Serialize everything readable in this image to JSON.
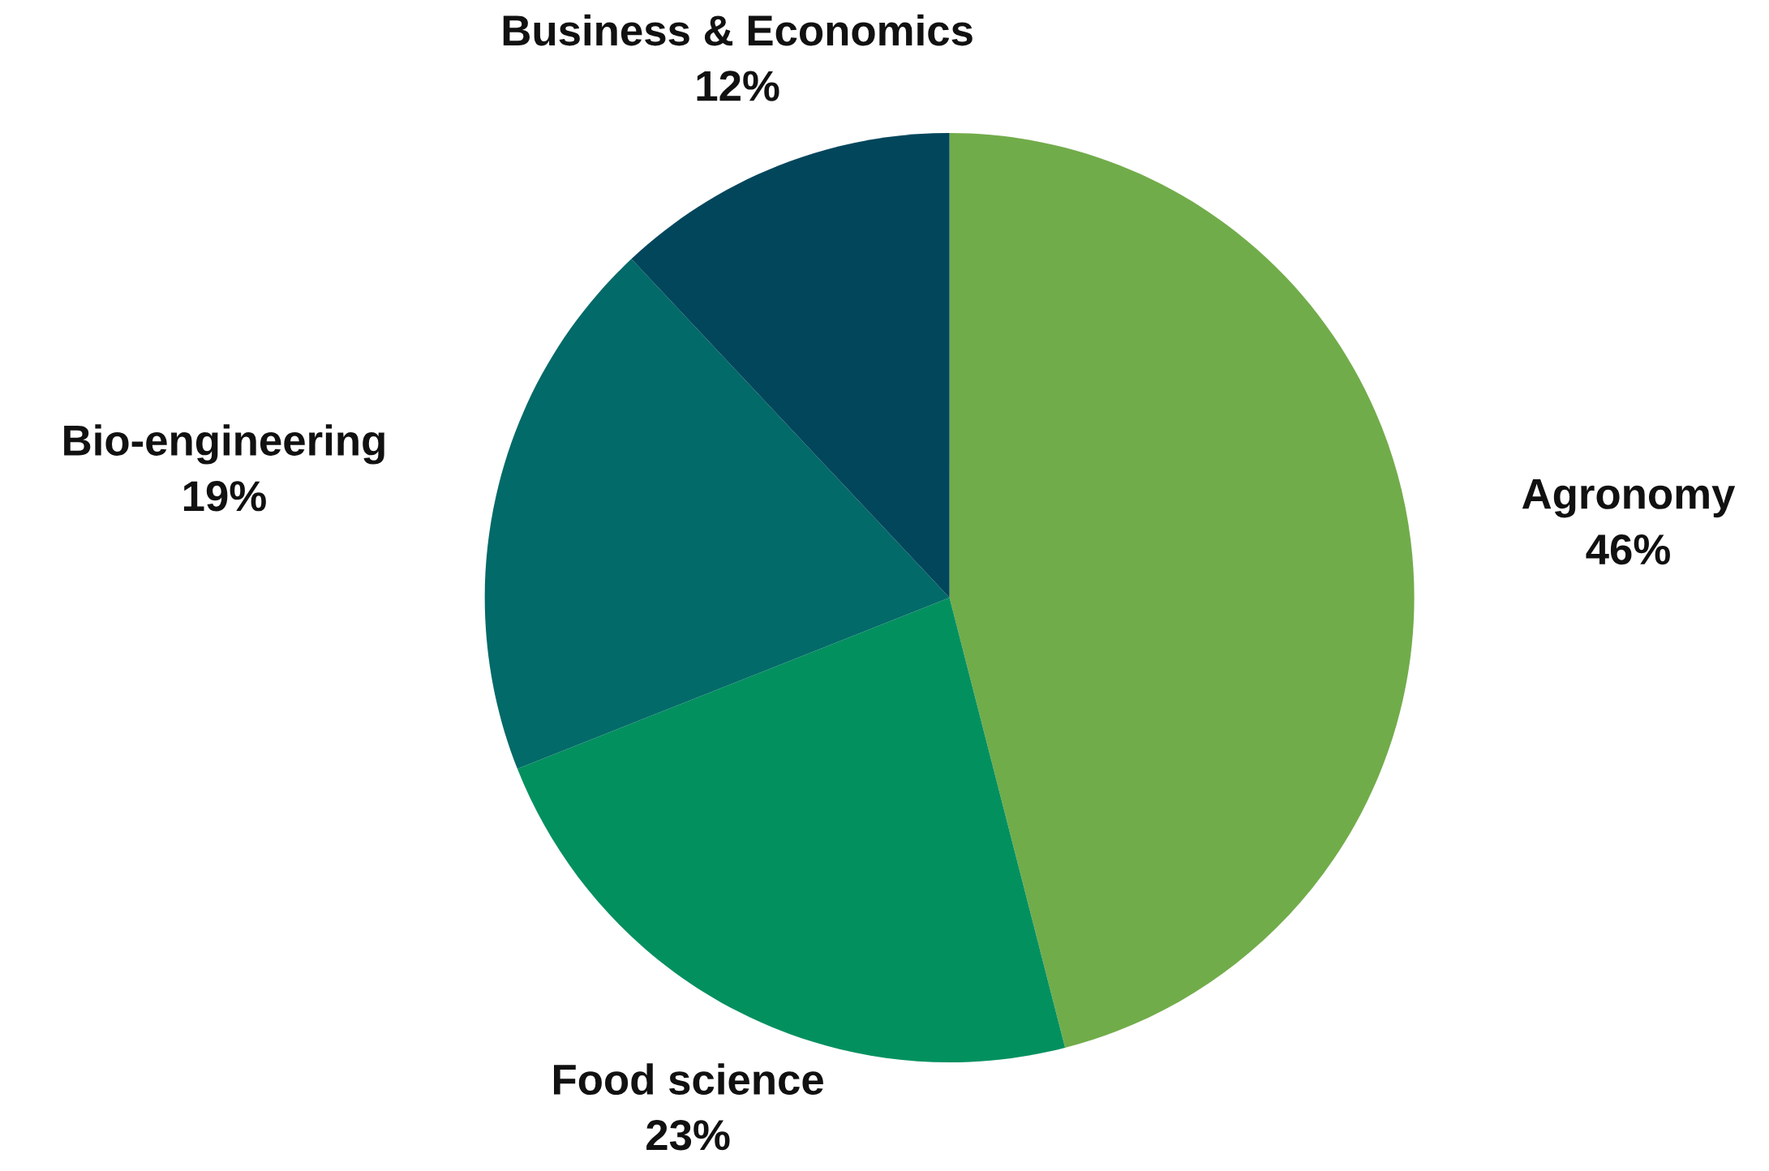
{
  "chart_data": {
    "type": "pie",
    "categories": [
      "Agronomy",
      "Food science",
      "Bio-engineering",
      "Business & Economics"
    ],
    "values": [
      46,
      23,
      19,
      12
    ],
    "value_labels": [
      "46%",
      "23%",
      "19%",
      "12%"
    ],
    "colors": [
      "#71ac4a",
      "#03905f",
      "#026a68",
      "#02465c"
    ],
    "legend": false
  }
}
